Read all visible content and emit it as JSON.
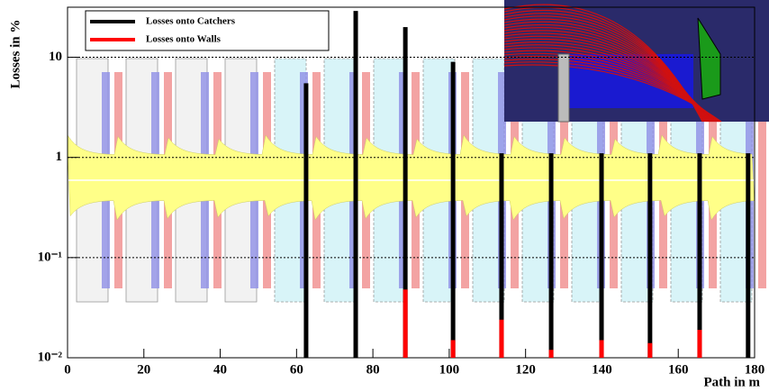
{
  "chart_data": {
    "type": "bar",
    "y_label": "Losses in %",
    "x_label": "Path in m",
    "x": [
      62.5,
      75.5,
      88.5,
      101,
      113.7,
      126.7,
      139.9,
      152.6,
      165.6,
      178.3
    ],
    "series": [
      {
        "name": "Losses onto Catchers",
        "color": "#000000",
        "values": [
          5.5,
          29,
          20,
          9,
          1.1,
          1.1,
          1.1,
          1.1,
          1.1,
          1.1
        ]
      },
      {
        "name": "Losses onto Walls",
        "color": "#ff0000",
        "values": [
          null,
          null,
          0.048,
          0.015,
          0.024,
          0.012,
          0.015,
          0.014,
          0.019,
          null
        ]
      }
    ],
    "xlim": [
      0,
      180
    ],
    "xticks": [
      0,
      20,
      40,
      60,
      80,
      100,
      120,
      140,
      160,
      180
    ],
    "ylim": [
      0.01,
      31.6
    ],
    "yticks": [
      {
        "value": 0.01,
        "label": "10⁻²"
      },
      {
        "value": 0.1,
        "label": "10⁻¹"
      },
      1,
      10
    ],
    "log_y": true,
    "grid": true,
    "legend": "upper-left"
  }
}
